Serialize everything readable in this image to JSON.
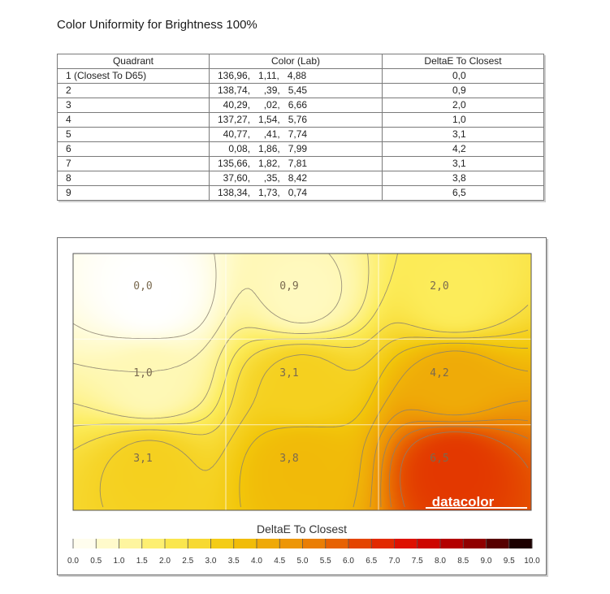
{
  "title": "Color Uniformity for Brightness 100%",
  "table": {
    "headers": [
      "Quadrant",
      "Color (Lab)",
      "DeltaE To Closest"
    ],
    "rows": [
      {
        "quadrant": "1 (Closest To D65)",
        "lab": "136,96,   1,11,   4,88",
        "delta": "0,0"
      },
      {
        "quadrant": "2",
        "lab": "138,74,     ,39,   5,45",
        "delta": "0,9"
      },
      {
        "quadrant": "3",
        "lab": "  40,29,     ,02,   6,66",
        "delta": "2,0"
      },
      {
        "quadrant": "4",
        "lab": "137,27,   1,54,   5,76",
        "delta": "1,0"
      },
      {
        "quadrant": "5",
        "lab": "  40,77,     ,41,   7,74",
        "delta": "3,1"
      },
      {
        "quadrant": "6",
        "lab": "    0,08,   1,86,   7,99",
        "delta": "4,2"
      },
      {
        "quadrant": "7",
        "lab": "135,66,   1,82,   7,81",
        "delta": "3,1"
      },
      {
        "quadrant": "8",
        "lab": "  37,60,     ,35,   8,42",
        "delta": "3,8"
      },
      {
        "quadrant": "9",
        "lab": "138,34,   1,73,   0,74",
        "delta": "6,5"
      }
    ]
  },
  "chart_data": {
    "type": "heatmap",
    "grid": [
      [
        0.0,
        0.9,
        2.0
      ],
      [
        1.0,
        3.1,
        4.2
      ],
      [
        3.1,
        3.8,
        6.5
      ]
    ],
    "cell_labels": [
      [
        "0,0",
        "0,9",
        "2,0"
      ],
      [
        "1,0",
        "3,1",
        "4,2"
      ],
      [
        "3,1",
        "3,8",
        "6,5"
      ]
    ],
    "colorbar": {
      "title": "DeltaE To Closest",
      "range": [
        0,
        10
      ],
      "ticks": [
        "0.0",
        "0.5",
        "1.0",
        "1.5",
        "2.0",
        "2.5",
        "3.0",
        "3.5",
        "4.0",
        "4.5",
        "5.0",
        "5.5",
        "6.0",
        "6.5",
        "7.0",
        "7.5",
        "8.0",
        "8.5",
        "9.0",
        "9.5",
        "10.0"
      ]
    },
    "watermark": "datacolor",
    "colors": {
      "low": "#ffffff",
      "mid": "#f0c000",
      "high": "#e00000",
      "max": "#000000"
    }
  }
}
